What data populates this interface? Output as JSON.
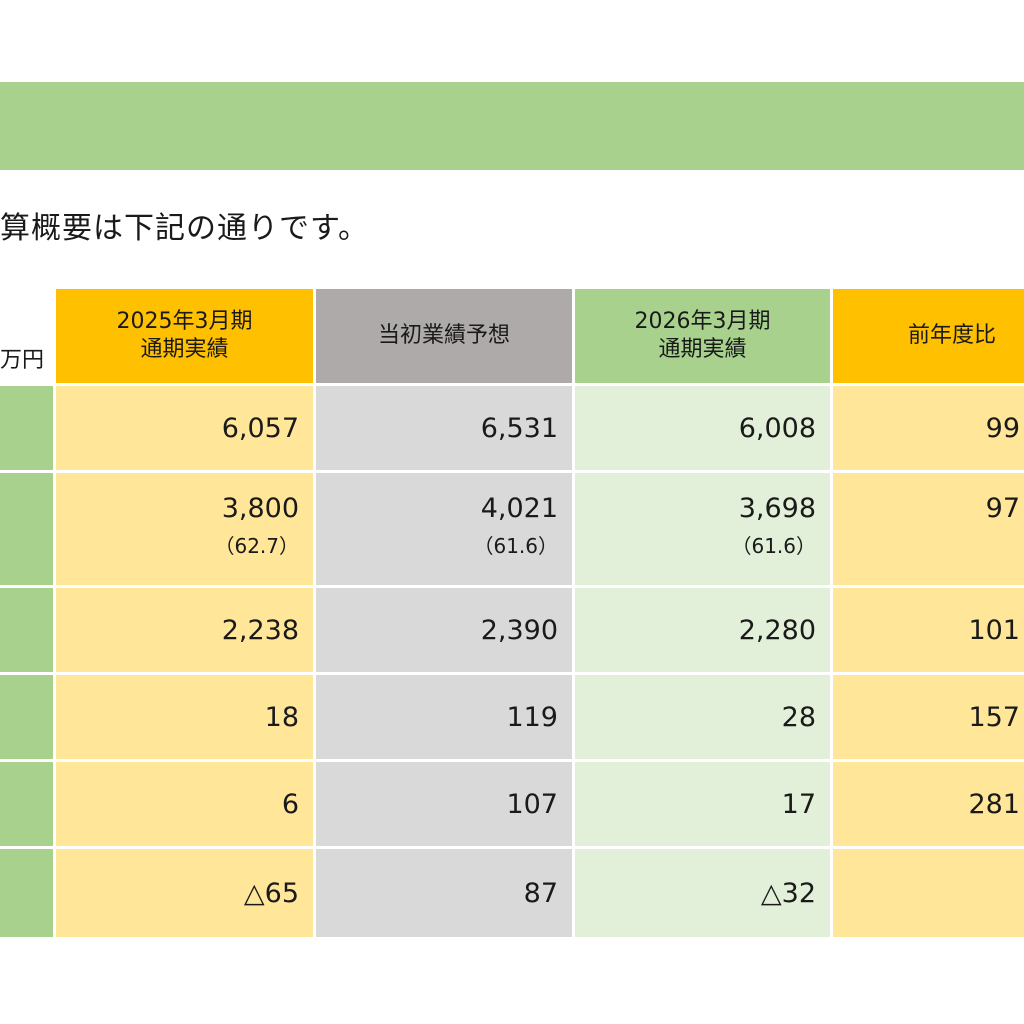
{
  "intro_text": "算概要は下記の通りです。",
  "unit_label": "万円",
  "headers": {
    "col1": [
      "2025年3月期",
      "通期実績"
    ],
    "col2": [
      "当初業績予想"
    ],
    "col3": [
      "2026年3月期",
      "通期実績"
    ],
    "col4": [
      "前年度比"
    ]
  },
  "rows": [
    {
      "c1": "6,057",
      "c2": "6,531",
      "c3": "6,008",
      "c4": "99"
    },
    {
      "c1": "3,800",
      "c1_sub": "（62.7）",
      "c2": "4,021",
      "c2_sub": "（61.6）",
      "c3": "3,698",
      "c3_sub": "（61.6）",
      "c4": "97"
    },
    {
      "c1": "2,238",
      "c2": "2,390",
      "c3": "2,280",
      "c4": "101"
    },
    {
      "c1": "18",
      "c2": "119",
      "c3": "28",
      "c4": "157"
    },
    {
      "c1": "6",
      "c2": "107",
      "c3": "17",
      "c4": "281"
    },
    {
      "c1": "△65",
      "c2": "87",
      "c3": "△32",
      "c4": ""
    }
  ],
  "colors": {
    "banner": "#a8d18e",
    "col1_header": "#ffc000",
    "col2_header": "#aeaaaa",
    "col3_header": "#a8d18e",
    "col4_header": "#ffc000",
    "col1_body": "#ffe699",
    "col2_body": "#d9d9d9",
    "col3_body": "#e2efd9",
    "col4_body": "#ffe699",
    "row_label": "#a8d18e"
  }
}
